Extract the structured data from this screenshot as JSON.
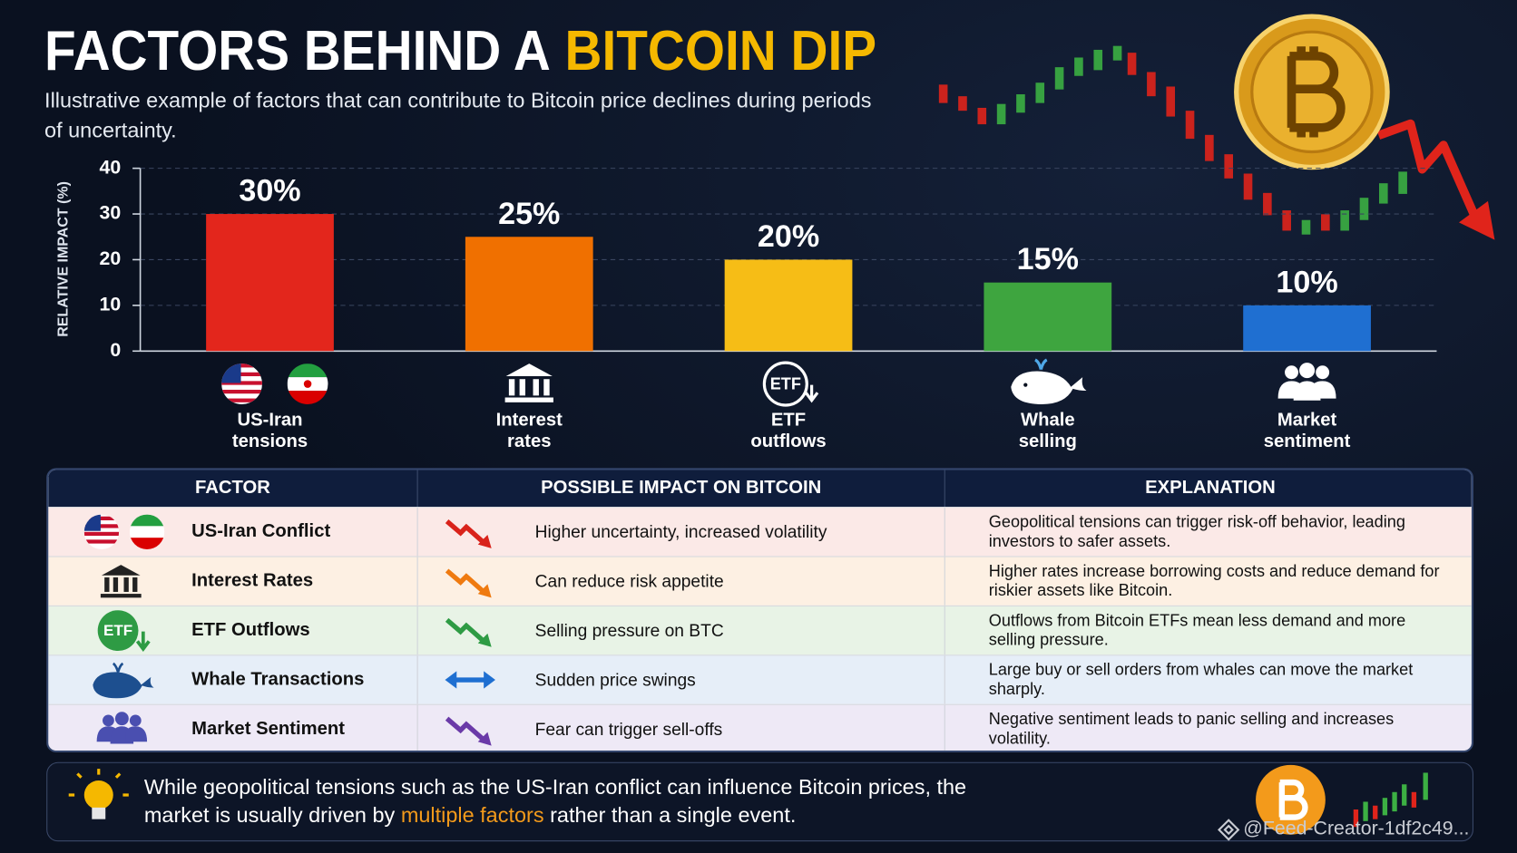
{
  "chart_data": {
    "type": "bar",
    "title": "FACTORS BEHIND A",
    "title_highlight": "BITCOIN DIP",
    "subtitle": "Illustrative example of factors that can contribute to Bitcoin price declines during periods of uncertainty.",
    "ylabel": "RELATIVE IMPACT (%)",
    "categories": [
      "US-Iran tensions",
      "Interest rates",
      "ETF outflows",
      "Whale selling",
      "Market sentiment"
    ],
    "values": [
      30,
      25,
      20,
      15,
      10
    ],
    "value_labels": [
      "30%",
      "25%",
      "20%",
      "15%",
      "10%"
    ],
    "colors": [
      "#e3261c",
      "#f07000",
      "#f6bd16",
      "#3ea53f",
      "#1f6fd1"
    ],
    "ylim": [
      0,
      40
    ],
    "yticks": [
      0,
      10,
      20,
      30,
      40
    ],
    "grid": true
  },
  "etf_icon_label": "ETF",
  "table": {
    "headers": [
      "FACTOR",
      "POSSIBLE IMPACT ON BITCOIN",
      "EXPLANATION"
    ],
    "rows": [
      [
        "US-Iran Conflict",
        "Higher uncertainty, increased volatility",
        "Geopolitical tensions can trigger risk-off behavior, leading investors to safer assets."
      ],
      [
        "Interest Rates",
        "Can reduce risk appetite",
        "Higher rates increase borrowing costs and reduce demand for riskier assets like Bitcoin."
      ],
      [
        "ETF Outflows",
        "Selling pressure on BTC",
        "Outflows from Bitcoin ETFs mean less demand and more selling pressure."
      ],
      [
        "Whale Transactions",
        "Sudden price swings",
        "Large buy or sell orders from whales can move the market sharply."
      ],
      [
        "Market Sentiment",
        "Fear can trigger sell-offs",
        "Negative sentiment leads to panic selling and increases volatility."
      ]
    ]
  },
  "note": {
    "parts": [
      "While geopolitical tensions such as the US-Iran conflict can influence Bitcoin prices, the market is usually driven by",
      "multiple factors",
      "rather than a single event."
    ]
  },
  "watermark": "@Feed-Creator-1df2c49..."
}
